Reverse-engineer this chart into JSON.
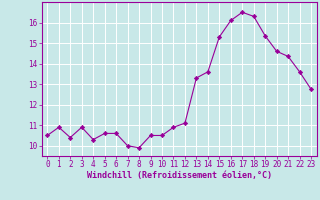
{
  "x": [
    0,
    1,
    2,
    3,
    4,
    5,
    6,
    7,
    8,
    9,
    10,
    11,
    12,
    13,
    14,
    15,
    16,
    17,
    18,
    19,
    20,
    21,
    22,
    23
  ],
  "y": [
    10.5,
    10.9,
    10.4,
    10.9,
    10.3,
    10.6,
    10.6,
    10.0,
    9.9,
    10.5,
    10.5,
    10.9,
    11.1,
    13.3,
    13.6,
    15.3,
    16.1,
    16.5,
    16.3,
    15.35,
    14.6,
    14.35,
    13.6,
    12.75
  ],
  "line_color": "#990099",
  "marker": "D",
  "marker_size": 2.2,
  "bg_color": "#c8e8e8",
  "grid_color": "#ffffff",
  "xlabel": "Windchill (Refroidissement éolien,°C)",
  "xlim": [
    -0.5,
    23.5
  ],
  "ylim": [
    9.5,
    17.0
  ],
  "yticks": [
    10,
    11,
    12,
    13,
    14,
    15,
    16
  ],
  "xticks": [
    0,
    1,
    2,
    3,
    4,
    5,
    6,
    7,
    8,
    9,
    10,
    11,
    12,
    13,
    14,
    15,
    16,
    17,
    18,
    19,
    20,
    21,
    22,
    23
  ],
  "tick_color": "#990099",
  "label_color": "#990099",
  "tick_fontsize": 5.5,
  "xlabel_fontsize": 6.0
}
